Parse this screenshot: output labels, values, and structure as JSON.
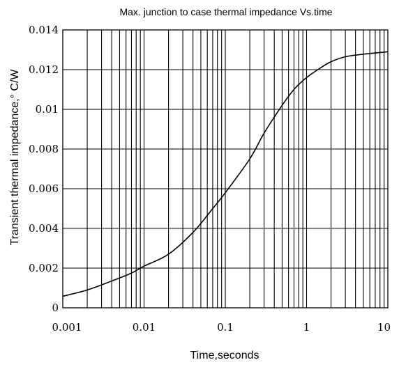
{
  "chart_data": {
    "type": "line",
    "title": "Max. junction to case thermal impedance Vs.time",
    "xlabel": "Time,seconds",
    "ylabel": "Transient thermal impedance,° C/W",
    "x_scale": "log",
    "xlim": [
      0.001,
      10
    ],
    "ylim": [
      0,
      0.014
    ],
    "grid": true,
    "legend": "none",
    "x_ticks": [
      "0.001",
      "0.01",
      "0.1",
      "1",
      "10"
    ],
    "y_ticks": [
      "0",
      "0.002",
      "0.004",
      "0.006",
      "0.008",
      "0.01",
      "0.012",
      "0.014"
    ],
    "series": [
      {
        "color": "#000000",
        "x": [
          0.001,
          0.002,
          0.004,
          0.007,
          0.01,
          0.02,
          0.04,
          0.07,
          0.1,
          0.2,
          0.3,
          0.5,
          0.7,
          1,
          1.5,
          2,
          3,
          5,
          7,
          10
        ],
        "y": [
          0.00058,
          0.0009,
          0.00135,
          0.00175,
          0.0021,
          0.0027,
          0.0038,
          0.005,
          0.0058,
          0.0075,
          0.0088,
          0.0102,
          0.011,
          0.0116,
          0.0121,
          0.0124,
          0.01265,
          0.01278,
          0.01284,
          0.0129
        ]
      }
    ]
  }
}
